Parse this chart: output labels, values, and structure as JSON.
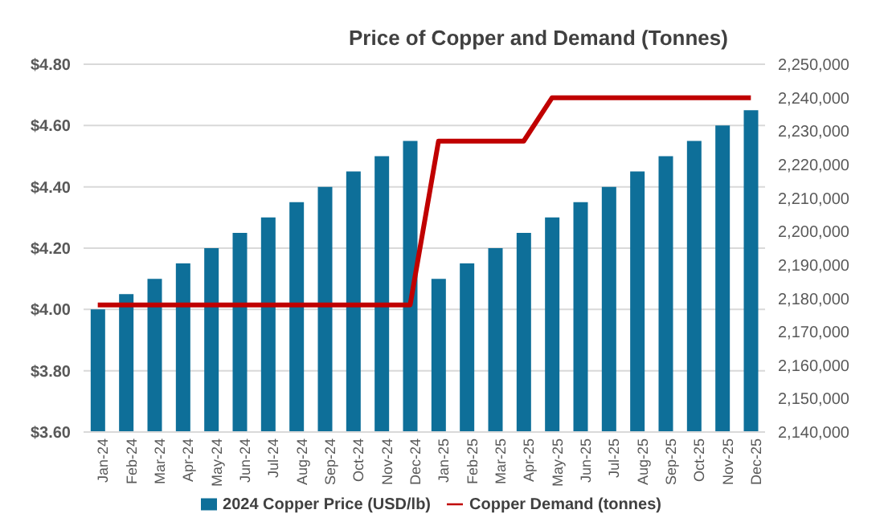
{
  "chart_data": {
    "type": "bar",
    "title": "Price of Copper and Demand (Tonnes)",
    "categories": [
      "Jan-24",
      "Feb-24",
      "Mar-24",
      "Apr-24",
      "May-24",
      "Jun-24",
      "Jul-24",
      "Aug-24",
      "Sep-24",
      "Oct-24",
      "Nov-24",
      "Dec-24",
      "Jan-25",
      "Feb-25",
      "Mar-25",
      "Apr-25",
      "May-25",
      "Jun-25",
      "Jul-25",
      "Aug-25",
      "Sep-25",
      "Oct-25",
      "Nov-25",
      "Dec-25"
    ],
    "series": [
      {
        "name": "2024 Copper Price (USD/lb)",
        "color": "#0e6f99",
        "values": [
          4.0,
          4.05,
          4.1,
          4.15,
          4.2,
          4.25,
          4.3,
          4.35,
          4.4,
          4.45,
          4.5,
          4.55,
          4.1,
          4.15,
          4.2,
          4.25,
          4.3,
          4.35,
          4.4,
          4.45,
          4.5,
          4.55,
          4.6,
          4.65
        ]
      },
      {
        "name": "Copper Demand (tonnes)",
        "type": "line",
        "axis": "y2",
        "color": "#c00000",
        "values": [
          2178000,
          2178000,
          2178000,
          2178000,
          2178000,
          2178000,
          2178000,
          2178000,
          2178000,
          2178000,
          2178000,
          2178000,
          2227000,
          2227000,
          2227000,
          2227000,
          2240000,
          2240000,
          2240000,
          2240000,
          2240000,
          2240000,
          2240000,
          2240000
        ]
      }
    ],
    "ylim": [
      3.6,
      4.8
    ],
    "yticks": [
      {
        "value": 3.6,
        "label": "$3.60"
      },
      {
        "value": 3.8,
        "label": "$3.80"
      },
      {
        "value": 4.0,
        "label": "$4.00"
      },
      {
        "value": 4.2,
        "label": "$4.20"
      },
      {
        "value": 4.4,
        "label": "$4.40"
      },
      {
        "value": 4.6,
        "label": "$4.60"
      },
      {
        "value": 4.8,
        "label": "$4.80"
      }
    ],
    "y2lim": [
      2140000,
      2250000
    ],
    "y2ticks": [
      {
        "value": 2140000,
        "label": "2,140,000"
      },
      {
        "value": 2150000,
        "label": "2,150,000"
      },
      {
        "value": 2160000,
        "label": "2,160,000"
      },
      {
        "value": 2170000,
        "label": "2,170,000"
      },
      {
        "value": 2180000,
        "label": "2,180,000"
      },
      {
        "value": 2190000,
        "label": "2,190,000"
      },
      {
        "value": 2200000,
        "label": "2,200,000"
      },
      {
        "value": 2210000,
        "label": "2,210,000"
      },
      {
        "value": 2220000,
        "label": "2,220,000"
      },
      {
        "value": 2230000,
        "label": "2,230,000"
      },
      {
        "value": 2240000,
        "label": "2,240,000"
      },
      {
        "value": 2250000,
        "label": "2,250,000"
      }
    ],
    "grid": "y",
    "legend": "bottom",
    "marker": "none",
    "line_style": "solid"
  }
}
